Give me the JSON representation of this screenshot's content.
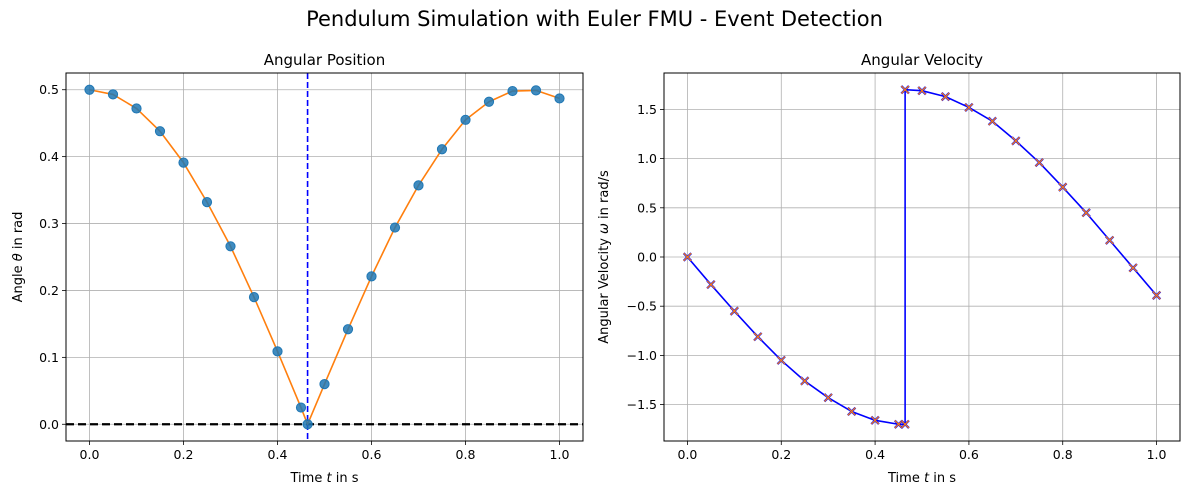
{
  "figure": {
    "title": "Pendulum Simulation with Euler FMU - Event Detection"
  },
  "colors": {
    "position_line": "#ff7f0e",
    "position_markers": "#1f77b4",
    "velocity_line": "#0000ff",
    "velocity_markers": "#ff7f0e",
    "event_line": "#0000ff",
    "zero_line": "#000000",
    "grid": "#b0b0b0"
  },
  "chart_data": [
    {
      "type": "line",
      "title": "Angular Position",
      "xlabel": "Time $t$ in s",
      "xlabel_parts": [
        "Time ",
        "t",
        " in s"
      ],
      "ylabel": "Angle $\\theta$ in rad",
      "ylabel_parts": [
        "Angle ",
        "θ",
        " in rad"
      ],
      "xlim": [
        -0.05,
        1.05
      ],
      "ylim": [
        -0.025,
        0.525
      ],
      "xticks": [
        0.0,
        0.2,
        0.4,
        0.6,
        0.8,
        1.0
      ],
      "xtick_labels": [
        "0.0",
        "0.2",
        "0.4",
        "0.6",
        "0.8",
        "1.0"
      ],
      "yticks": [
        0.0,
        0.1,
        0.2,
        0.3,
        0.4,
        0.5
      ],
      "ytick_labels": [
        "0.0",
        "0.1",
        "0.2",
        "0.3",
        "0.4",
        "0.5"
      ],
      "grid": true,
      "event_time": 0.464,
      "hline_y": 0.0,
      "series": [
        {
          "x": [
            0.0,
            0.05,
            0.1,
            0.15,
            0.2,
            0.25,
            0.3,
            0.35,
            0.4,
            0.45,
            0.464,
            0.5,
            0.55,
            0.6,
            0.65,
            0.7,
            0.75,
            0.8,
            0.85,
            0.9,
            0.95,
            1.0
          ],
          "y": [
            0.5,
            0.493,
            0.472,
            0.438,
            0.391,
            0.332,
            0.266,
            0.19,
            0.109,
            0.025,
            0.0,
            0.06,
            0.142,
            0.221,
            0.294,
            0.357,
            0.411,
            0.455,
            0.482,
            0.498,
            0.499,
            0.487
          ],
          "line_color": "#ff7f0e",
          "marker": "o",
          "marker_color": "#1f77b4"
        }
      ]
    },
    {
      "type": "line",
      "title": "Angular Velocity",
      "xlabel": "Time $t$ in s",
      "xlabel_parts": [
        "Time ",
        "t",
        " in s"
      ],
      "ylabel": "Angular Velocity $\\omega$ in rad/s",
      "ylabel_parts": [
        "Angular Velocity ",
        "ω",
        " in rad/s"
      ],
      "xlim": [
        -0.05,
        1.05
      ],
      "ylim": [
        -1.87,
        1.87
      ],
      "xticks": [
        0.0,
        0.2,
        0.4,
        0.6,
        0.8,
        1.0
      ],
      "xtick_labels": [
        "0.0",
        "0.2",
        "0.4",
        "0.6",
        "0.8",
        "1.0"
      ],
      "yticks": [
        -1.5,
        -1.0,
        -0.5,
        0.0,
        0.5,
        1.0,
        1.5
      ],
      "ytick_labels": [
        "−1.5",
        "−1.0",
        "−0.5",
        "0.0",
        "0.5",
        "1.0",
        "1.5"
      ],
      "grid": true,
      "series": [
        {
          "x": [
            0.0,
            0.05,
            0.1,
            0.15,
            0.2,
            0.25,
            0.3,
            0.35,
            0.4,
            0.45,
            0.464,
            0.464,
            0.5,
            0.55,
            0.6,
            0.65,
            0.7,
            0.75,
            0.8,
            0.85,
            0.9,
            0.95,
            1.0
          ],
          "y": [
            0.0,
            -0.28,
            -0.55,
            -0.81,
            -1.05,
            -1.26,
            -1.43,
            -1.57,
            -1.66,
            -1.7,
            -1.7,
            1.7,
            1.69,
            1.63,
            1.52,
            1.38,
            1.18,
            0.96,
            0.71,
            0.45,
            0.17,
            -0.11,
            -0.39
          ],
          "line_color": "#0000ff",
          "marker": "x",
          "marker_color": "#ff7f0e",
          "marker_edge_color": "#0000ff"
        }
      ]
    }
  ]
}
